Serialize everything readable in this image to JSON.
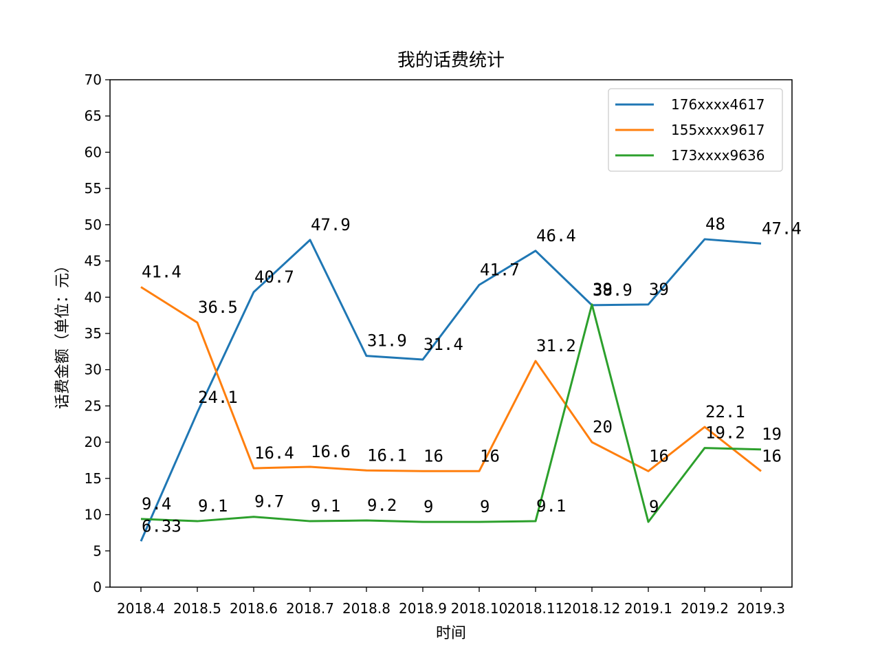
{
  "chart_data": {
    "type": "line",
    "title": "我的话费统计",
    "xlabel": "时间",
    "ylabel": "话费金额（单位：元）",
    "ylim": [
      0,
      70
    ],
    "yticks": [
      0,
      5,
      10,
      15,
      20,
      25,
      30,
      35,
      40,
      45,
      50,
      55,
      60,
      65,
      70
    ],
    "categories": [
      "2018.4",
      "2018.5",
      "2018.6",
      "2018.7",
      "2018.8",
      "2018.9",
      "2018.10",
      "2018.11",
      "2018.12",
      "2019.1",
      "2019.2",
      "2019.3"
    ],
    "grid": false,
    "legend_position": "top-right",
    "series": [
      {
        "name": "176xxxx4617",
        "color": "#1f77b4",
        "values": [
          6.33,
          24.1,
          40.7,
          47.9,
          31.9,
          31.4,
          41.7,
          46.4,
          38.9,
          39,
          48,
          47.4
        ],
        "labels": [
          "6.33",
          "24.1",
          "40.7",
          "47.9",
          "31.9",
          "31.4",
          "41.7",
          "46.4",
          "38.9",
          "39",
          "48",
          "47.4"
        ]
      },
      {
        "name": "155xxxx9617",
        "color": "#ff7f0e",
        "values": [
          41.4,
          36.5,
          16.4,
          16.6,
          16.1,
          16,
          16,
          31.2,
          20,
          16,
          22.1,
          16
        ],
        "labels": [
          "41.4",
          "36.5",
          "16.4",
          "16.6",
          "16.1",
          "16",
          "16",
          "31.2",
          "20",
          "16",
          "22.1",
          "16"
        ]
      },
      {
        "name": "173xxxx9636",
        "color": "#2ca02c",
        "values": [
          9.4,
          9.1,
          9.7,
          9.1,
          9.2,
          9,
          9,
          9.1,
          39,
          9,
          19.2,
          19
        ],
        "labels": [
          "9.4",
          "9.1",
          "9.7",
          "9.1",
          "9.2",
          "9",
          "9",
          "9.1",
          "39",
          "9",
          "19.2",
          "19"
        ]
      }
    ]
  }
}
